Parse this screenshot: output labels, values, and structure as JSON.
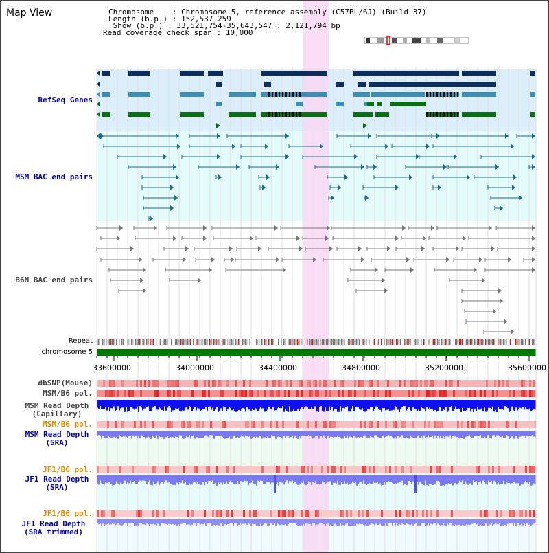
{
  "panel": {
    "title": "Map View"
  },
  "info": {
    "line1": "Chromosome    : Chromosome 5, reference assembly (C57BL/6J) (Build 37)",
    "line2": "Length (b.p.) : 152,537,259",
    "line3": " Show (b.p.) : 33,521,754-35,643,547 : 2,121,794 bp",
    "line4": "Read coverage check span : 10,000"
  },
  "tracks": {
    "refseq": "RefSeq Genes",
    "msm_bac": "MSM BAC end pairs",
    "b6n_bac": "B6N BAC end pairs",
    "repeat": "Repeat",
    "chromosome": "chromosome 5",
    "dbsnp": "dbSNP(Mouse)",
    "msm_pol": "MSM/B6 pol.",
    "msm_depth_cap_1": "MSM Read Depth",
    "msm_depth_cap_2": "(Capillary)",
    "msm_pol2": "MSM/B6 pol.",
    "msm_depth_sra_1": "MSM Read Depth",
    "msm_depth_sra_2": "(SRA)",
    "jf1_pol": "JF1/B6 pol.",
    "jf1_depth_sra_1": "JF1 Read Depth",
    "jf1_depth_sra_2": "(SRA)",
    "jf1_pol2": "JF1/B6 pol.",
    "jf1_depth_trim_1": "JF1 Read Depth",
    "jf1_depth_trim_2": "(SRA trimmed)"
  },
  "axis": {
    "ticks": [
      "33600000",
      "34000000",
      "34400000",
      "34800000",
      "35200000",
      "35600000"
    ]
  },
  "colors": {
    "refseq_bg": "#dceefa",
    "bac_bg": "#e4fbfb",
    "highlight": "#f8d8f4",
    "gene_dark": "#0b2e5e",
    "gene_mid": "#3b8fb5",
    "gene_green": "#0a6e12",
    "msm_pair": "#1c6e88",
    "b6n_pair": "#777777",
    "chromosome": "#007700",
    "label_blue": "#0000aa",
    "label_orange": "#e08a00",
    "depth_blue": "#1010ee",
    "depth_light": "#7a7af4"
  }
}
